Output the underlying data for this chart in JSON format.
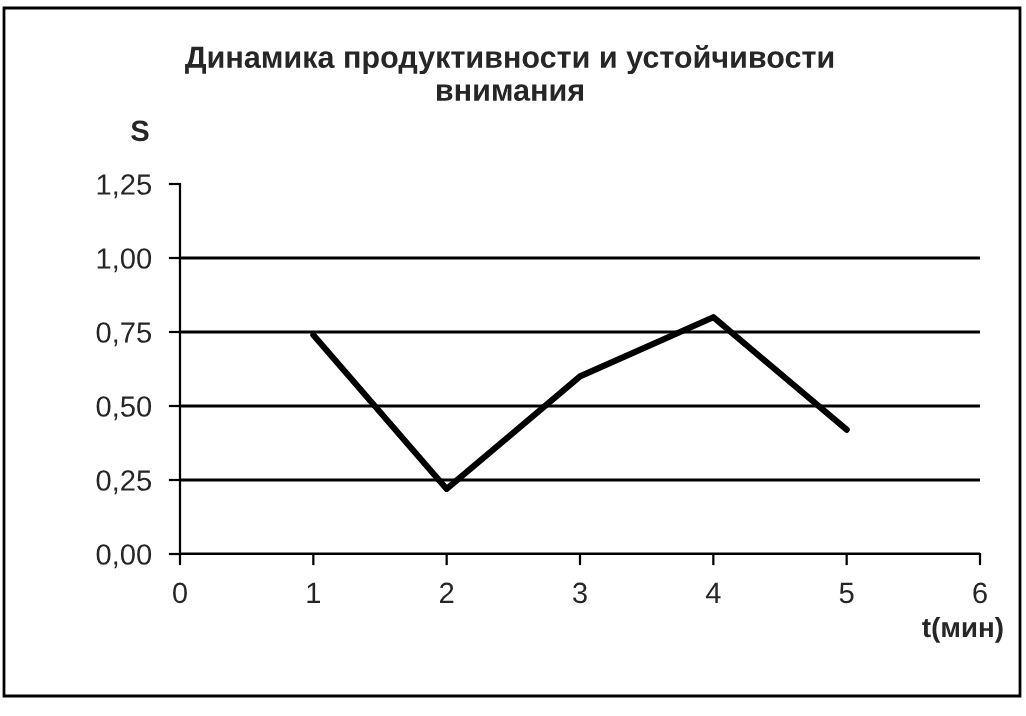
{
  "chart_data": {
    "type": "line",
    "title": "Динамика продуктивности и устойчивости\nвнимания",
    "xlabel": "t(мин)",
    "ylabel": "S",
    "x": [
      1,
      2,
      3,
      4,
      5
    ],
    "series": [
      {
        "color": "#000000",
        "values": [
          0.74,
          0.22,
          0.6,
          0.8,
          0.42
        ]
      }
    ],
    "xlim": [
      0,
      6
    ],
    "xticks": [
      0,
      1,
      2,
      3,
      4,
      5,
      6
    ],
    "ylim": [
      0,
      1.25
    ],
    "yticks": [
      {
        "value": 0,
        "label": "0,00"
      },
      {
        "value": 0.25,
        "label": "0,25"
      },
      {
        "value": 0.5,
        "label": "0,50"
      },
      {
        "value": 0.75,
        "label": "0,75"
      },
      {
        "value": 1,
        "label": "1,00"
      },
      {
        "value": 1.25,
        "label": "1,25"
      }
    ],
    "grid": "y",
    "legend": false,
    "marker": "none",
    "line_style": "solid"
  }
}
